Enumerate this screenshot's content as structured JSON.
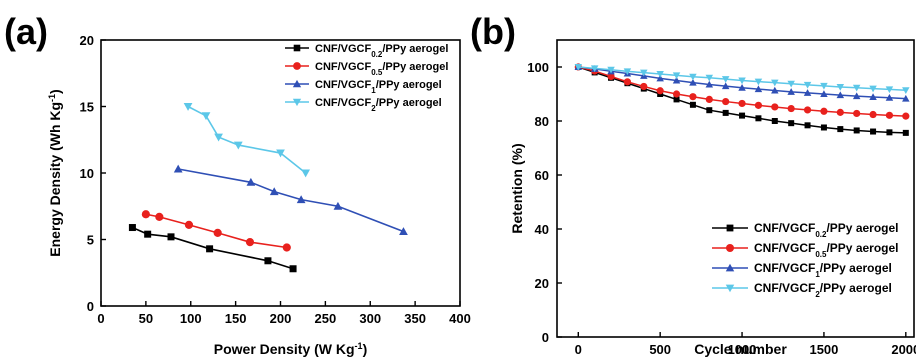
{
  "chart_data": [
    {
      "panel": "(a)",
      "type": "line",
      "xlabel": "Power Density (W Kg⁻¹)",
      "xlabel_base": "Power Density (W Kg",
      "xlabel_sup": "-1",
      "xlabel_end": ")",
      "ylabel": "Energy Density (Wh Kg⁻¹)",
      "ylabel_base": "Energy Density (Wh Kg",
      "ylabel_sup": "-1",
      "ylabel_end": ")",
      "xlim": [
        0,
        400
      ],
      "ylim": [
        0,
        20
      ],
      "xticks": [
        0,
        50,
        100,
        150,
        200,
        250,
        300,
        350,
        400
      ],
      "yticks": [
        0,
        5,
        10,
        15,
        20
      ],
      "legend_position": "top-right",
      "series": [
        {
          "name": "CNF/VGCF0.2/PPy aerogel",
          "legend_pre": "CNF/VGCF",
          "legend_sub": "0.2",
          "legend_post": "/PPy aerogel",
          "color": "#000000",
          "marker": "square",
          "x": [
            35,
            52,
            78,
            121,
            186,
            214
          ],
          "y": [
            5.9,
            5.4,
            5.2,
            4.3,
            3.4,
            2.8
          ]
        },
        {
          "name": "CNF/VGCF0.5/PPy aerogel",
          "legend_pre": "CNF/VGCF",
          "legend_sub": "0.5",
          "legend_post": "/PPy aerogel",
          "color": "#e8211d",
          "marker": "circle",
          "x": [
            50,
            65,
            98,
            130,
            166,
            207
          ],
          "y": [
            6.9,
            6.7,
            6.1,
            5.5,
            4.8,
            4.4
          ]
        },
        {
          "name": "CNF/VGCF1/PPy aerogel",
          "legend_pre": "CNF/VGCF",
          "legend_sub": "1",
          "legend_post": "/PPy aerogel",
          "color": "#2f4fb5",
          "marker": "triangle-up",
          "x": [
            86,
            167,
            193,
            223,
            264,
            337
          ],
          "y": [
            10.3,
            9.3,
            8.6,
            8.0,
            7.5,
            5.6
          ]
        },
        {
          "name": "CNF/VGCF2/PPy aerogel",
          "legend_pre": "CNF/VGCF",
          "legend_sub": "2",
          "legend_post": "/PPy aerogel",
          "color": "#5cc7e8",
          "marker": "triangle-down",
          "x": [
            97,
            117,
            131,
            153,
            200,
            228
          ],
          "y": [
            15.0,
            14.3,
            12.7,
            12.1,
            11.5,
            10.0
          ]
        }
      ]
    },
    {
      "panel": "(b)",
      "type": "line",
      "xlabel": "Cycle number",
      "ylabel": "Retention (%)",
      "xlim": [
        -130,
        2050
      ],
      "ylim": [
        0,
        110
      ],
      "xticks": [
        0,
        500,
        1000,
        1500,
        2000
      ],
      "yticks": [
        0,
        20,
        40,
        60,
        80,
        100
      ],
      "legend_position": "bottom-right",
      "x": [
        0,
        100,
        200,
        300,
        400,
        500,
        600,
        700,
        800,
        900,
        1000,
        1100,
        1200,
        1300,
        1400,
        1500,
        1600,
        1700,
        1800,
        1900,
        2000
      ],
      "series": [
        {
          "name": "CNF/VGCF0.2/PPy aerogel",
          "legend_pre": "CNF/VGCF",
          "legend_sub": "0.2",
          "legend_post": "/PPy aerogel",
          "color": "#000000",
          "marker": "square",
          "values": [
            100,
            98,
            96,
            94,
            92,
            90,
            88,
            86,
            84,
            83,
            82,
            81,
            80,
            79.2,
            78.4,
            77.6,
            77,
            76.5,
            76.1,
            75.8,
            75.6
          ]
        },
        {
          "name": "CNF/VGCF0.5/PPy aerogel",
          "legend_pre": "CNF/VGCF",
          "legend_sub": "0.5",
          "legend_post": "/PPy aerogel",
          "color": "#e8211d",
          "marker": "circle",
          "values": [
            100,
            98.5,
            96.5,
            94.5,
            92.8,
            91.2,
            90,
            89,
            88,
            87.2,
            86.5,
            85.8,
            85.2,
            84.6,
            84.1,
            83.6,
            83.2,
            82.8,
            82.4,
            82.1,
            81.8
          ]
        },
        {
          "name": "CNF/VGCF1/PPy aerogel",
          "legend_pre": "CNF/VGCF",
          "legend_sub": "1",
          "legend_post": "/PPy aerogel",
          "color": "#2f4fb5",
          "marker": "triangle-up",
          "values": [
            100,
            99.3,
            98.4,
            97.6,
            96.7,
            95.8,
            95,
            94.2,
            93.5,
            92.9,
            92.3,
            91.8,
            91.3,
            90.8,
            90.4,
            90,
            89.6,
            89.2,
            88.9,
            88.6,
            88.3
          ]
        },
        {
          "name": "CNF/VGCF2/PPy aerogel",
          "legend_pre": "CNF/VGCF",
          "legend_sub": "2",
          "legend_post": "/PPy aerogel",
          "color": "#5cc7e8",
          "marker": "triangle-down",
          "values": [
            100,
            99.5,
            99,
            98.4,
            97.9,
            97.4,
            96.9,
            96.4,
            96,
            95.5,
            95,
            94.6,
            94.2,
            93.8,
            93.4,
            93,
            92.6,
            92.3,
            92,
            91.7,
            91.4
          ]
        }
      ]
    }
  ]
}
